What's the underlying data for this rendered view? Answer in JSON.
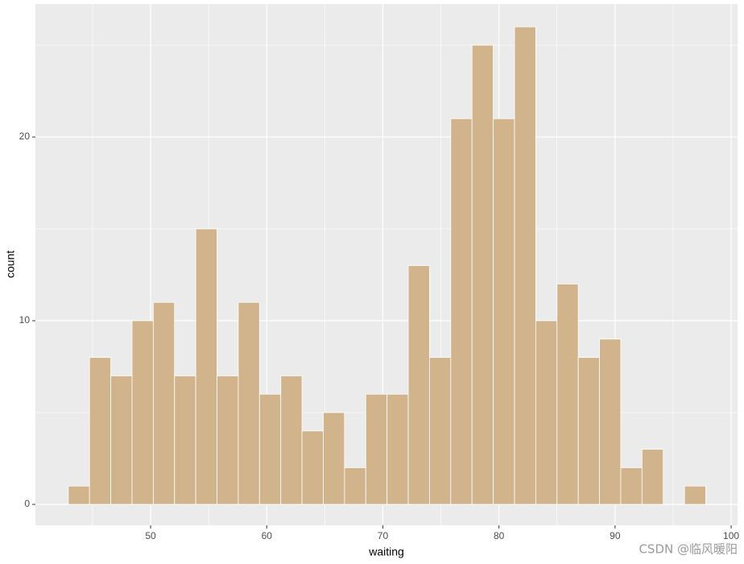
{
  "chart_data": {
    "type": "histogram",
    "x_label": "waiting",
    "y_label": "count",
    "bins": [
      42.91,
      44.74,
      46.57,
      48.4,
      50.23,
      52.06,
      53.89,
      55.72,
      57.55,
      59.38,
      61.21,
      63.04,
      64.87,
      66.7,
      68.53,
      70.36,
      72.19,
      74.02,
      75.85,
      77.68,
      79.51,
      81.34,
      83.17,
      85.0,
      86.83,
      88.66,
      90.49,
      92.32,
      94.15,
      95.98,
      97.81
    ],
    "values": [
      1,
      8,
      7,
      10,
      11,
      7,
      15,
      7,
      11,
      6,
      7,
      4,
      5,
      2,
      6,
      6,
      13,
      8,
      21,
      25,
      21,
      26,
      10,
      12,
      8,
      9,
      2,
      3,
      0,
      1
    ],
    "color": "#D2B48C",
    "edge_color": "#FFFFFF",
    "background": "#EBEBEB",
    "xlim": [
      40.08,
      100.55
    ],
    "ylim": [
      -1.14,
      27.24
    ],
    "xticks": [
      50,
      60,
      70,
      80,
      90,
      100
    ],
    "yticks": [
      0,
      10,
      20
    ],
    "x_minor_breaks": [
      45,
      55,
      65,
      75,
      85,
      95
    ],
    "y_minor_breaks": [
      5,
      15,
      25
    ],
    "grid": true,
    "watermark": "CSDN @临风暖阳"
  }
}
